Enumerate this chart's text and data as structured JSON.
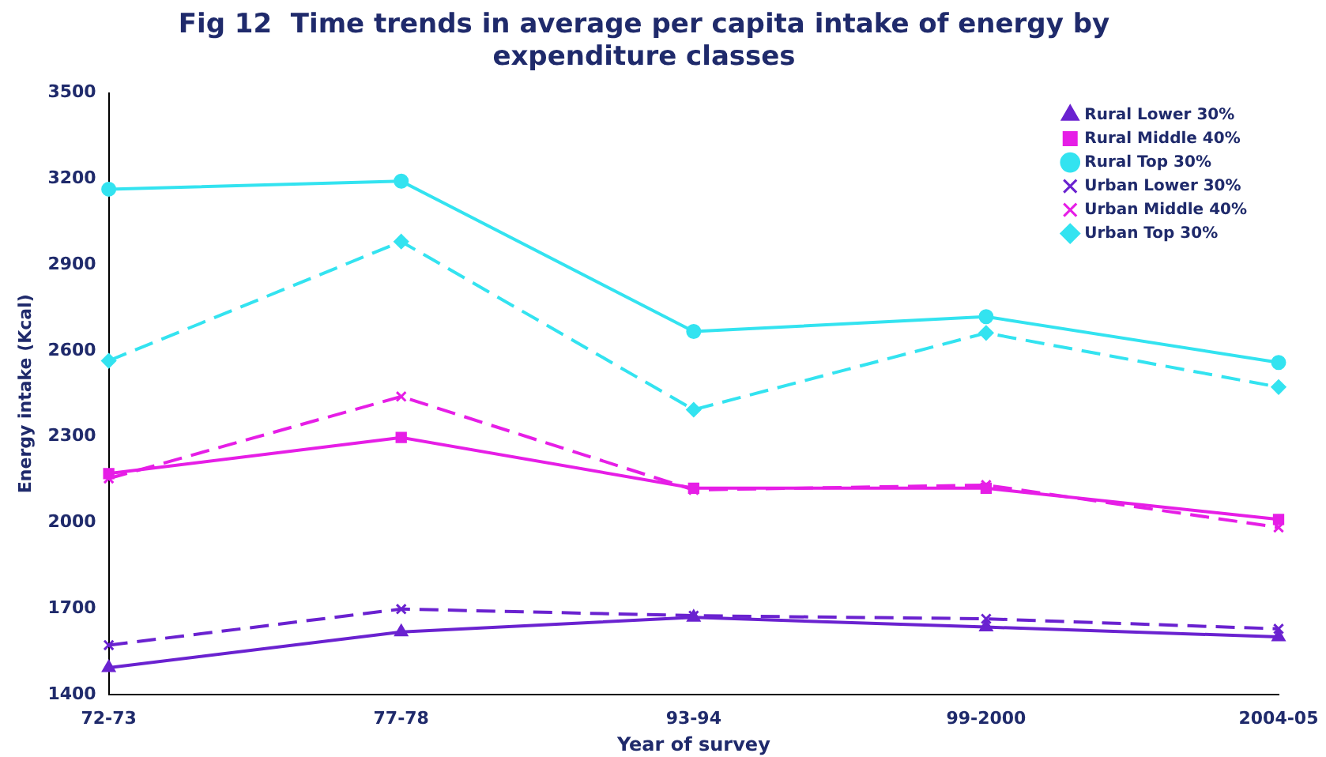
{
  "chart_data": {
    "type": "line",
    "title": "Fig 12  Time trends in average per capita intake of energy by expenditure classes",
    "xlabel": "Year of survey",
    "ylabel": "Energy intake (Kcal)",
    "categories": [
      "72-73",
      "77-78",
      "93-94",
      "99-2000",
      "2004-05"
    ],
    "ylim": [
      1400,
      3500
    ],
    "yticks": [
      1400,
      1700,
      2000,
      2300,
      2600,
      2900,
      3200,
      3500
    ],
    "grid": false,
    "legend": "top right",
    "series": [
      {
        "name": "Rural Lower 30%",
        "color": "#6a22d0",
        "marker": "triangle",
        "line_style": "solid",
        "values": [
          1493,
          1618,
          1669,
          1635,
          1601
        ]
      },
      {
        "name": "Rural Middle 40%",
        "color": "#e61ee6",
        "marker": "square",
        "line_style": "solid",
        "values": [
          2171,
          2297,
          2120,
          2120,
          2011
        ]
      },
      {
        "name": "Rural Top 30%",
        "color": "#33e3f0",
        "marker": "circle",
        "line_style": "solid",
        "values": [
          3164,
          3192,
          2667,
          2719,
          2559
        ]
      },
      {
        "name": "Urban Lower 30%",
        "color": "#6a22d0",
        "marker": "cross",
        "line_style": "dashed",
        "values": [
          1572,
          1698,
          1675,
          1664,
          1629
        ]
      },
      {
        "name": "Urban Middle 40%",
        "color": "#e61ee6",
        "marker": "cross",
        "line_style": "dashed",
        "values": [
          2154,
          2440,
          2114,
          2131,
          1983
        ]
      },
      {
        "name": "Urban Top 30%",
        "color": "#33e3f0",
        "marker": "diamond",
        "line_style": "dashed",
        "values": [
          2565,
          2981,
          2394,
          2662,
          2473
        ]
      }
    ]
  }
}
